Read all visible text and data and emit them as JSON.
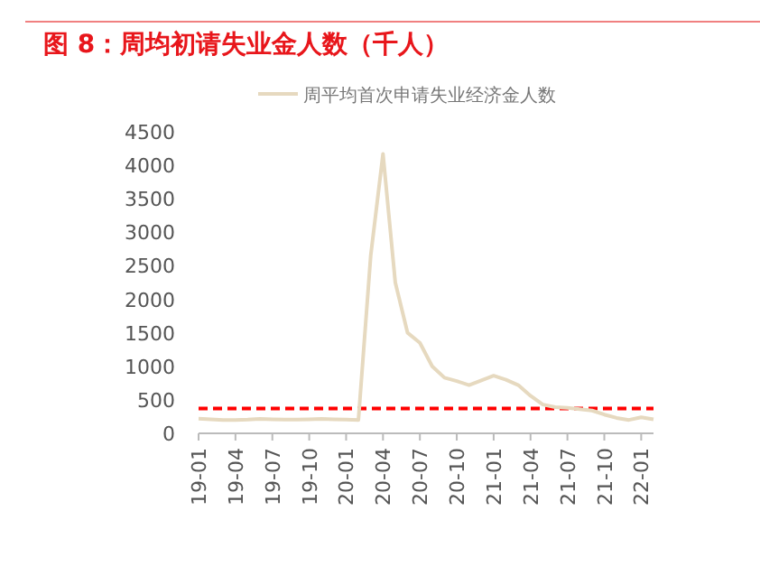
{
  "chart_data": {
    "type": "line",
    "title": "图 8：周均初请失业金人数（千人）",
    "categories": [
      "19-01",
      null,
      null,
      "19-04",
      null,
      null,
      "19-07",
      null,
      null,
      "19-10",
      null,
      null,
      "20-01",
      null,
      null,
      "20-04",
      null,
      null,
      "20-07",
      null,
      null,
      "20-10",
      null,
      null,
      "21-01",
      null,
      null,
      "21-04",
      null,
      null,
      "21-07",
      null,
      null,
      "21-10",
      null,
      null,
      "22-01",
      null
    ],
    "series": [
      {
        "name": "周平均首次申请失业经济金人数",
        "color": "#e6d9bf",
        "values": [
          220,
          210,
          200,
          200,
          205,
          215,
          210,
          205,
          205,
          210,
          215,
          210,
          205,
          200,
          2650,
          4170,
          2250,
          1500,
          1350,
          1000,
          830,
          780,
          720,
          790,
          860,
          800,
          720,
          560,
          430,
          390,
          380,
          360,
          340,
          280,
          230,
          200,
          240,
          210
        ]
      }
    ],
    "ylim": [
      0,
      4500
    ],
    "yticks": [
      0,
      500,
      1000,
      1500,
      2000,
      2500,
      3000,
      3500,
      4000,
      4500
    ],
    "ref_lines": [
      {
        "axis": "y",
        "value": 370,
        "color": "#ff0000",
        "line_style": "dashed"
      }
    ],
    "legend": "top",
    "grid": false
  }
}
